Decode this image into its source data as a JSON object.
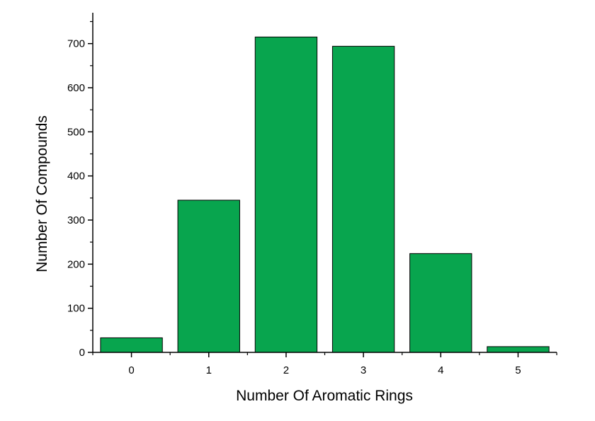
{
  "chart_data": {
    "type": "bar",
    "title": "",
    "xlabel": "Number Of Aromatic Rings",
    "ylabel": "Number Of Compounds",
    "categories": [
      "0",
      "1",
      "2",
      "3",
      "4",
      "5"
    ],
    "values": [
      33,
      345,
      715,
      694,
      224,
      13
    ],
    "ylim": [
      0,
      770
    ],
    "yticks": [
      0,
      100,
      200,
      300,
      400,
      500,
      600,
      700
    ],
    "ytick_labels": [
      "0",
      "100",
      "200",
      "300",
      "400",
      "500",
      "600",
      "700"
    ],
    "grid": false,
    "legend": "none",
    "bar_color": "#08A54E",
    "bar_edge_color": "#000000"
  }
}
